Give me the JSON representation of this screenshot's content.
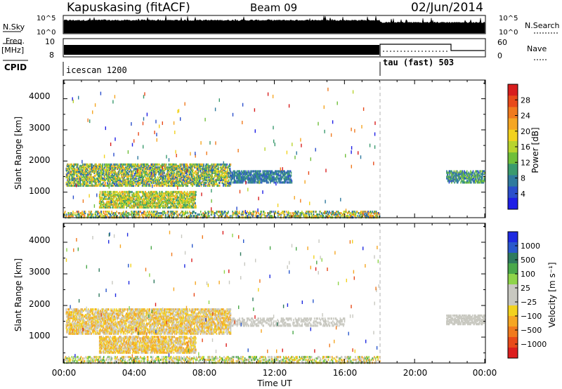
{
  "header": {
    "station": "Kapuskasing (fitACF)",
    "beam": "Beam 09",
    "date": "02/Jun/2014"
  },
  "strips": {
    "nsky_label": "N.Sky",
    "nsky_ticks": [
      "10^5",
      "10^0"
    ],
    "nsearch_label": "N.Search",
    "nsearch_ticks": [
      "10^5",
      "10^0"
    ],
    "freq_label": "Freq.",
    "freq_unit": "[MHz]",
    "freq_ticks": [
      "10",
      "8"
    ],
    "nave_label": "Nave",
    "nave_ticks": [
      "60",
      "0"
    ],
    "cpid_label": "CPID",
    "cpid_segments": [
      {
        "name": "icescan 1200",
        "start_hr": 0,
        "end_hr": 18
      },
      {
        "name": "tau (fast) 503",
        "start_hr": 18,
        "end_hr": 24
      }
    ]
  },
  "axes": {
    "ylabel": "Slant Range [km]",
    "xlabel": "Time UT",
    "yticks": [
      "4000",
      "3000",
      "2000",
      "1000"
    ],
    "xticks": [
      "00:00",
      "04:00",
      "08:00",
      "12:00",
      "16:00",
      "20:00",
      "00:00"
    ]
  },
  "power_bar": {
    "label": "Power [dB]",
    "ticks": [
      "28",
      "24",
      "20",
      "16",
      "12",
      "8",
      "4"
    ],
    "colors": [
      "#1e1ee6",
      "#2a4ecc",
      "#2f7a9e",
      "#3a9a6e",
      "#6fbf3a",
      "#b8d42e",
      "#f2d21e",
      "#f5a623",
      "#f07a1e",
      "#e84a1a",
      "#d81e1e"
    ]
  },
  "velocity_bar": {
    "label": "Velocity [m s⁻¹]",
    "ticks": [
      "1000",
      "500",
      "100",
      "25",
      "−25",
      "−100",
      "−500",
      "−1000"
    ],
    "colors": [
      "#1e2ae0",
      "#2a58cc",
      "#2f7a5e",
      "#4aa84a",
      "#8fd44a",
      "#c8c8c0",
      "#c8c8c0",
      "#f2d21e",
      "#f5a623",
      "#f07a1e",
      "#e84a1a",
      "#dc1e1e"
    ]
  },
  "chart_data": [
    {
      "type": "heatmap",
      "title": "Power",
      "xlabel": "Time UT",
      "ylabel": "Slant Range [km]",
      "xlim_hours": [
        0,
        24
      ],
      "ylim_km": [
        180,
        4600
      ],
      "colorbar": {
        "label": "Power [dB]",
        "range": [
          0,
          30
        ]
      },
      "scatter_regions": [
        {
          "t_start": 0.1,
          "t_end": 9.5,
          "r_low": 1200,
          "r_high": 1900,
          "value_range": [
            4,
            22
          ]
        },
        {
          "t_start": 9.5,
          "t_end": 13.0,
          "r_low": 1300,
          "r_high": 1700,
          "value_range": [
            4,
            10
          ]
        },
        {
          "t_start": 2.0,
          "t_end": 7.5,
          "r_low": 500,
          "r_high": 1000,
          "value_range": [
            8,
            22
          ]
        },
        {
          "t_start": 21.8,
          "t_end": 24.0,
          "r_low": 1300,
          "r_high": 1700,
          "value_range": [
            4,
            14
          ]
        },
        {
          "t_start": 0.0,
          "t_end": 18.0,
          "r_low": 180,
          "r_high": 400,
          "value_range": [
            4,
            24
          ]
        }
      ]
    },
    {
      "type": "heatmap",
      "title": "Velocity",
      "xlabel": "Time UT",
      "ylabel": "Slant Range [km]",
      "xlim_hours": [
        0,
        24
      ],
      "ylim_km": [
        180,
        4600
      ],
      "colorbar": {
        "label": "Velocity [m s⁻¹]",
        "range": [
          -1000,
          1000
        ]
      },
      "scatter_regions": [
        {
          "t_start": 0.1,
          "t_end": 9.5,
          "r_low": 1100,
          "r_high": 1900,
          "value_range": [
            -500,
            100
          ]
        },
        {
          "t_start": 9.5,
          "t_end": 16.0,
          "r_low": 1350,
          "r_high": 1600,
          "value_range": [
            -25,
            25
          ]
        },
        {
          "t_start": 2.0,
          "t_end": 7.5,
          "r_low": 500,
          "r_high": 1000,
          "value_range": [
            -500,
            25
          ]
        },
        {
          "t_start": 21.8,
          "t_end": 24.0,
          "r_low": 1400,
          "r_high": 1700,
          "value_range": [
            -25,
            25
          ]
        },
        {
          "t_start": 0.0,
          "t_end": 18.0,
          "r_low": 180,
          "r_high": 400,
          "value_range": [
            -500,
            500
          ]
        }
      ]
    }
  ]
}
